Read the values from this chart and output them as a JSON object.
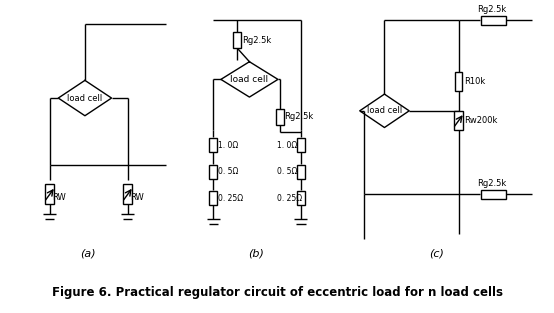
{
  "title": "Figure 6. Practical regulator circuit of eccentric load for n load cells",
  "title_fontsize": 8.5,
  "bg_color": "#ffffff",
  "line_color": "#000000",
  "fig_width": 5.54,
  "fig_height": 3.13,
  "dpi": 100,
  "labels": {
    "a": "(a)",
    "b": "(b)",
    "c": "(c)",
    "load_cell": "load cell",
    "RW": "RW",
    "Rg2k_b_top": "Rg2.5k",
    "Rg2k_b_mid": "Rg2.5k",
    "res_1_0": "1. 0Ω",
    "res_0_5": "0. 5Ω",
    "res_0_25": "0. 25Ω",
    "Rg2k_c_top": "Rg2.5k",
    "R10k": "R10k",
    "Rw200k": "Rw200k",
    "Rg2k_c_bot": "Rg2.5k"
  }
}
